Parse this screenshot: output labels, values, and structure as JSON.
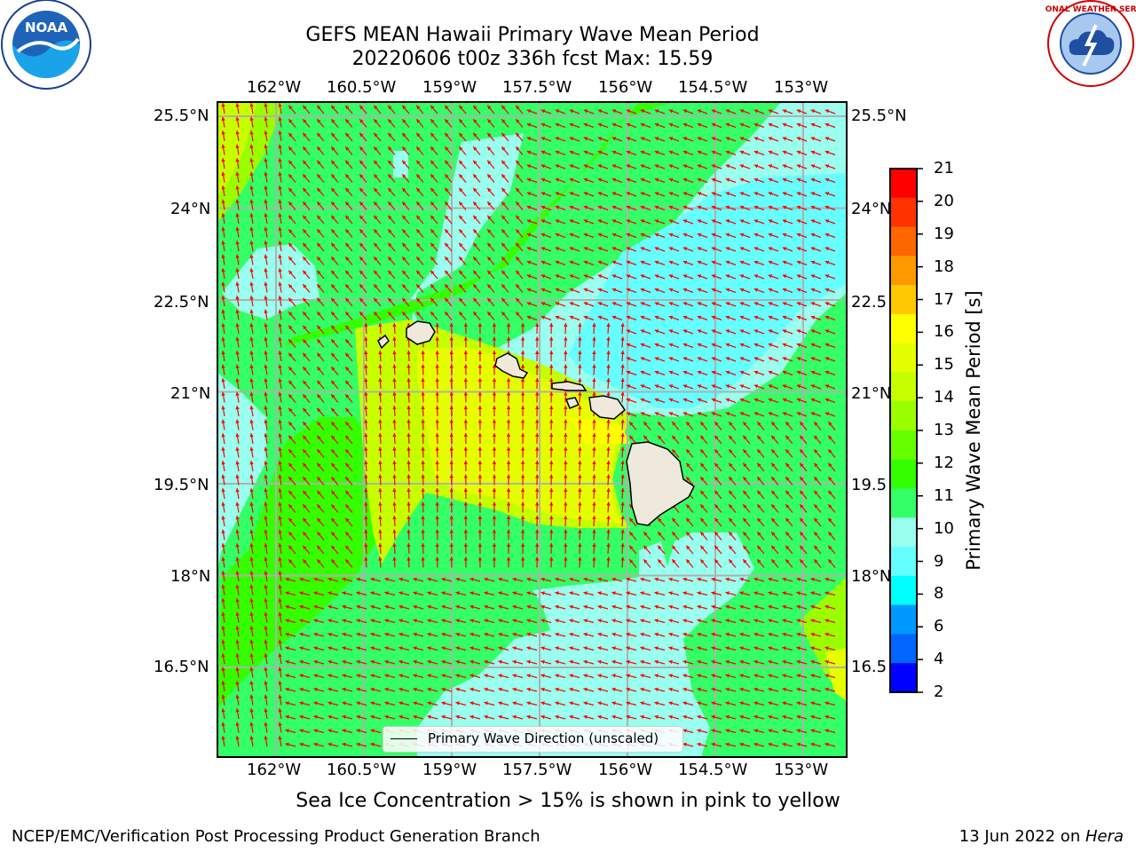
{
  "title": {
    "line1": "GEFS MEAN Hawaii Primary Wave Mean Period",
    "line2": "20220606 t00z 336h fcst   Max: 15.59"
  },
  "logos": {
    "left": "NOAA",
    "left_ring_text": "NATIONAL OCEANIC AND ATMOSPHERIC ADMINISTRATION · U.S. DEPARTMENT OF COMMERCE",
    "right_ring_text": "NATIONAL WEATHER SERVICE",
    "right_icon": "nws-lightning-cloud-icon"
  },
  "axes": {
    "lon_labels": [
      "162°W",
      "160.5°W",
      "159°W",
      "157.5°W",
      "156°W",
      "154.5°W",
      "153°W"
    ],
    "lat_labels_left": [
      "25.5°N",
      "24°N",
      "22.5°N",
      "21°N",
      "19.5°N",
      "18°N",
      "16.5°N"
    ],
    "lat_labels_right": [
      "25.5°N",
      "24°N",
      "22.5",
      "21°N",
      "19.5",
      "18°N",
      "16.5"
    ],
    "lon_values": [
      -162,
      -160.5,
      -159,
      -157.5,
      -156,
      -154.5,
      -153
    ],
    "lat_values": [
      25.5,
      24,
      22.5,
      21,
      19.5,
      18,
      16.5
    ]
  },
  "legend": {
    "label": "Primary Wave Direction (unscaled)",
    "line_color": "#000000"
  },
  "colorbar": {
    "label": "Primary Wave Mean Period [s]",
    "tick_labels": [
      "21",
      "20",
      "19",
      "18",
      "17",
      "16",
      "15",
      "14",
      "13",
      "12",
      "11",
      "10",
      "9",
      "8",
      "6",
      "4",
      "2"
    ],
    "colors_top_to_bottom": [
      "#ff0000",
      "#ff3300",
      "#ff6600",
      "#ff9900",
      "#ffc800",
      "#ffff00",
      "#e5ff00",
      "#c5ff00",
      "#99ff00",
      "#66ff00",
      "#33ff00",
      "#33ff66",
      "#99ffee",
      "#66ffff",
      "#00ffff",
      "#0099ff",
      "#0066ff",
      "#0000ff"
    ],
    "arrow_color": "#ff0000"
  },
  "sea_ice_note": "Sea Ice Concentration > 15% is shown in pink to yellow",
  "footer": {
    "left": "NCEP/EMC/Verification Post Processing Product Generation Branch",
    "right_date": "13 Jun 2022 on ",
    "right_host": "Hera"
  }
}
